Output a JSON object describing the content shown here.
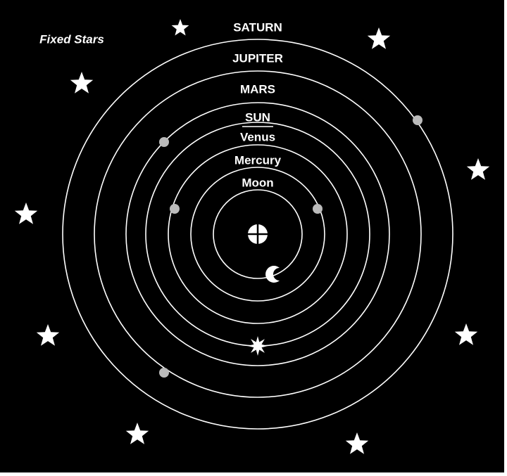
{
  "title": "Fixed Stars",
  "orbits": [
    {
      "label": "Moon"
    },
    {
      "label": "Mercury"
    },
    {
      "label": "Venus"
    },
    {
      "label": "SUN"
    },
    {
      "label": "MARS"
    },
    {
      "label": "JUPITER"
    },
    {
      "label": "SATURN"
    }
  ]
}
